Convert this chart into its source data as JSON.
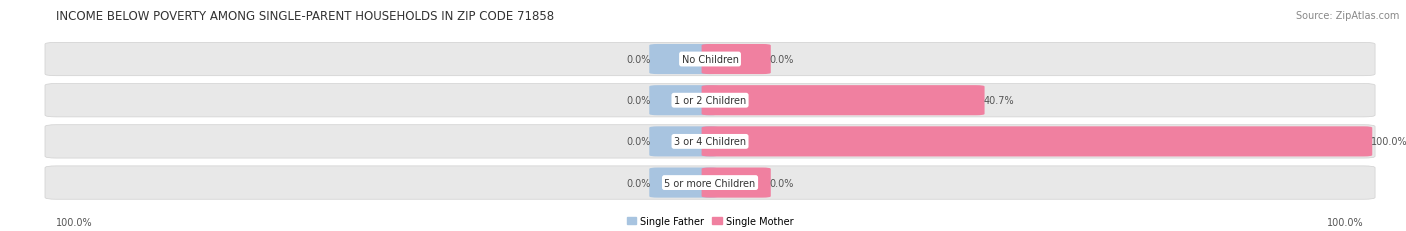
{
  "title": "INCOME BELOW POVERTY AMONG SINGLE-PARENT HOUSEHOLDS IN ZIP CODE 71858",
  "source": "Source: ZipAtlas.com",
  "categories": [
    "No Children",
    "1 or 2 Children",
    "3 or 4 Children",
    "5 or more Children"
  ],
  "single_father": [
    0.0,
    0.0,
    0.0,
    0.0
  ],
  "single_mother": [
    0.0,
    40.7,
    100.0,
    0.0
  ],
  "father_color": "#a8c4e0",
  "mother_color": "#f080a0",
  "bar_bg_color": "#e8e8e8",
  "bar_bg_edge_color": "#d0d0d0",
  "title_fontsize": 8.5,
  "source_fontsize": 7,
  "label_fontsize": 7,
  "category_fontsize": 7,
  "axis_label_fontsize": 7,
  "left_axis_label": "100.0%",
  "right_axis_label": "100.0%",
  "stub_pct": 8.0,
  "max_val": 100.0
}
